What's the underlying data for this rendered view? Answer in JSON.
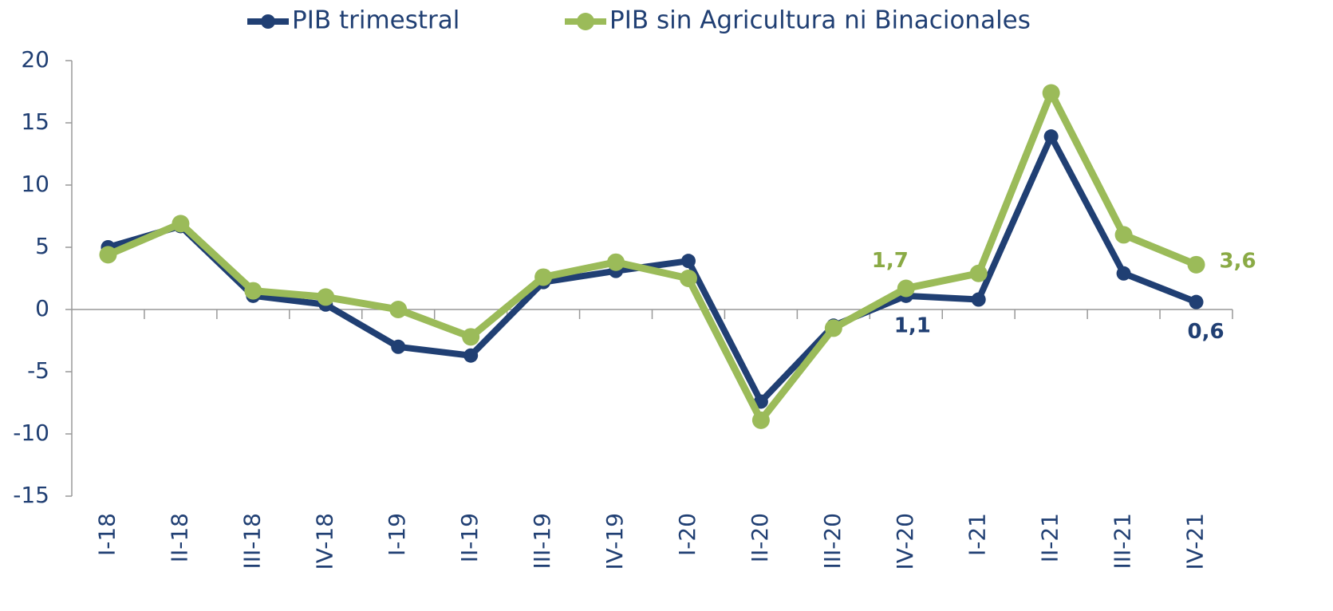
{
  "chart_data": {
    "type": "line",
    "categories": [
      "I-18",
      "II-18",
      "III-18",
      "IV-18",
      "I-19",
      "II-19",
      "III-19",
      "IV-19",
      "I-20",
      "II-20",
      "III-20",
      "IV-20",
      "I-21",
      "II-21",
      "III-21",
      "IV-21"
    ],
    "series": [
      {
        "name": "PIB trimestral",
        "color": "#203f73",
        "values": [
          5.0,
          6.7,
          1.1,
          0.4,
          -3.0,
          -3.7,
          2.2,
          3.1,
          3.9,
          -7.4,
          -1.3,
          1.1,
          0.8,
          13.9,
          2.9,
          0.6
        ],
        "value_labels": [
          null,
          null,
          null,
          null,
          null,
          null,
          null,
          null,
          null,
          null,
          null,
          "1,1",
          null,
          null,
          null,
          "0,6"
        ]
      },
      {
        "name": "PIB sin Agricultura ni Binacionales",
        "color": "#9bbb59",
        "values": [
          4.4,
          6.9,
          1.5,
          1.0,
          0.0,
          -2.2,
          2.6,
          3.8,
          2.5,
          -8.9,
          -1.5,
          1.7,
          2.9,
          17.4,
          6.0,
          3.6
        ],
        "value_labels": [
          null,
          null,
          null,
          null,
          null,
          null,
          null,
          null,
          null,
          null,
          null,
          "1,7",
          null,
          null,
          null,
          "3,6"
        ]
      }
    ],
    "ylim": [
      -15,
      20
    ],
    "yticks": [
      -15,
      -10,
      -5,
      0,
      5,
      10,
      15,
      20
    ],
    "legend": "top"
  }
}
